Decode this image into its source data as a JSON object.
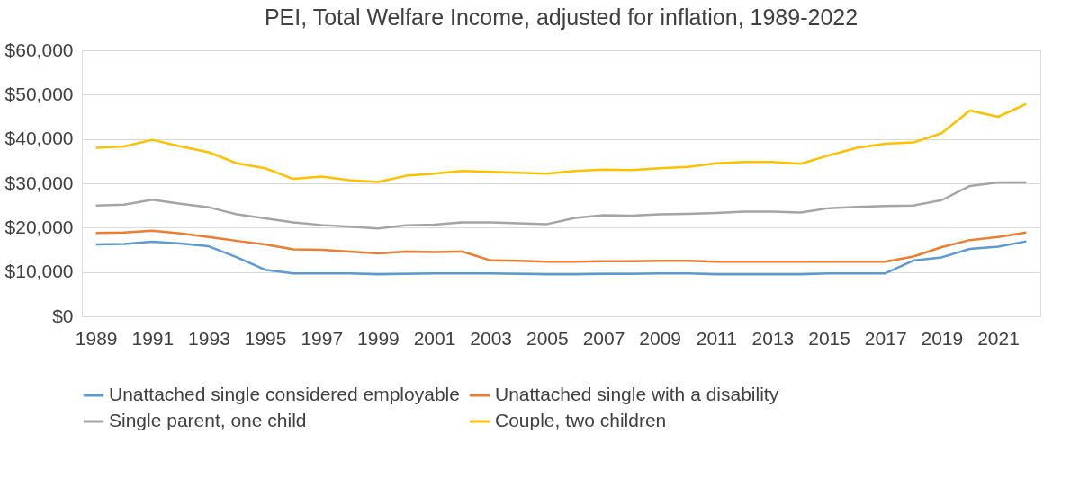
{
  "chart_data": {
    "type": "line",
    "title": "PEI, Total Welfare Income, adjusted for inflation, 1989-2022",
    "categories": [
      "1989",
      null,
      "1991",
      null,
      "1993",
      null,
      "1995",
      null,
      "1997",
      null,
      "1999",
      null,
      "2001",
      null,
      "2003",
      null,
      "2005",
      null,
      "2007",
      null,
      "2009",
      null,
      "2011",
      null,
      "2013",
      null,
      "2015",
      null,
      "2017",
      null,
      "2019",
      null,
      "2021",
      null
    ],
    "series": [
      {
        "name": "Unattached single considered employable",
        "color": "#5b9bd5",
        "values": [
          16200,
          16300,
          16800,
          16400,
          15800,
          13300,
          10500,
          9700,
          9700,
          9700,
          9500,
          9600,
          9700,
          9700,
          9700,
          9600,
          9500,
          9500,
          9600,
          9600,
          9700,
          9700,
          9500,
          9500,
          9500,
          9500,
          9700,
          9700,
          9700,
          12600,
          13300,
          15200,
          15700,
          16900
        ]
      },
      {
        "name": "Unattached single with a disability",
        "color": "#ed7d31",
        "values": [
          18800,
          18900,
          19300,
          18700,
          17900,
          17000,
          16200,
          15100,
          15000,
          14600,
          14200,
          14600,
          14500,
          14600,
          12600,
          12500,
          12300,
          12300,
          12400,
          12400,
          12500,
          12500,
          12300,
          12300,
          12300,
          12300,
          12300,
          12300,
          12300,
          13500,
          15600,
          17200,
          17900,
          18900
        ]
      },
      {
        "name": "Single parent, one child",
        "color": "#a5a5a5",
        "values": [
          25000,
          25200,
          26300,
          25400,
          24600,
          23000,
          22100,
          21200,
          20600,
          20200,
          19800,
          20500,
          20700,
          21200,
          21200,
          21000,
          20800,
          22200,
          22800,
          22700,
          23000,
          23100,
          23300,
          23600,
          23600,
          23400,
          24400,
          24700,
          24900,
          25000,
          26200,
          29400,
          30200,
          30200
        ]
      },
      {
        "name": "Couple, two children",
        "color": "#ffc000",
        "values": [
          38000,
          38300,
          39800,
          38300,
          37000,
          34500,
          33400,
          31000,
          31500,
          30700,
          30300,
          31700,
          32200,
          32800,
          32600,
          32400,
          32200,
          32800,
          33100,
          33000,
          33400,
          33700,
          34500,
          34800,
          34800,
          34400,
          36300,
          38000,
          38900,
          39200,
          41300,
          46400,
          45000,
          47900
        ]
      }
    ],
    "ylim": [
      0,
      60000
    ],
    "yticks": [
      {
        "value": 0,
        "label": "$0"
      },
      {
        "value": 10000,
        "label": "$10,000"
      },
      {
        "value": 20000,
        "label": "$20,000"
      },
      {
        "value": 30000,
        "label": "$30,000"
      },
      {
        "value": 40000,
        "label": "$40,000"
      },
      {
        "value": 50000,
        "label": "$50,000"
      },
      {
        "value": 60000,
        "label": "$60,000"
      }
    ],
    "grid": "y",
    "legend": "bottom",
    "marker": "none",
    "line_style": "solid"
  }
}
